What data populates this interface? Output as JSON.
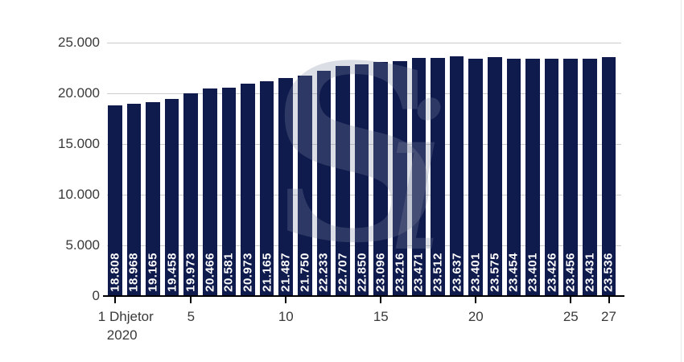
{
  "watermark": {
    "s": "S",
    "i": "i"
  },
  "chart_data": {
    "type": "bar",
    "title": "",
    "categories": [
      "1",
      "2",
      "3",
      "4",
      "5",
      "6",
      "7",
      "8",
      "9",
      "10",
      "11",
      "12",
      "13",
      "14",
      "15",
      "16",
      "17",
      "18",
      "19",
      "20",
      "21",
      "22",
      "23",
      "24",
      "25",
      "26",
      "27"
    ],
    "values": [
      18808,
      18968,
      19165,
      19458,
      19973,
      20466,
      20581,
      20973,
      21165,
      21487,
      21750,
      22233,
      22707,
      22850,
      23096,
      23216,
      23471,
      23512,
      23637,
      23401,
      23575,
      23454,
      23401,
      23426,
      23456,
      23431,
      23536
    ],
    "value_labels": [
      "18.808",
      "18.968",
      "19.165",
      "19.458",
      "19.973",
      "20.466",
      "20.581",
      "20.973",
      "21.165",
      "21.487",
      "21.750",
      "22.233",
      "22.707",
      "22.850",
      "23.096",
      "23.216",
      "23.471",
      "23.512",
      "23.637",
      "23.401",
      "23.575",
      "23.454",
      "23.401",
      "23.426",
      "23.456",
      "23.431",
      "23.536"
    ],
    "xlabel": "",
    "ylabel": "",
    "ylim": [
      0,
      25000
    ],
    "grid": true,
    "legend": null,
    "y_axis": {
      "ticks": [
        {
          "value": 25000,
          "label": "25.000"
        },
        {
          "value": 20000,
          "label": "20.000"
        },
        {
          "value": 15000,
          "label": "15.000"
        },
        {
          "value": 10000,
          "label": "10.000"
        },
        {
          "value": 5000,
          "label": "5.000"
        },
        {
          "value": 0,
          "label": "0"
        }
      ]
    },
    "x_axis": {
      "ticks": [
        {
          "day": 1,
          "label": "1 Dhjetor",
          "label2": "2020"
        },
        {
          "day": 5,
          "label": "5"
        },
        {
          "day": 10,
          "label": "10"
        },
        {
          "day": 15,
          "label": "15"
        },
        {
          "day": 20,
          "label": "20"
        },
        {
          "day": 25,
          "label": "25"
        },
        {
          "day": 27,
          "label": "27"
        }
      ]
    },
    "colors": {
      "bar": "#0f1a4d",
      "grid": "#cccccc",
      "axis": "#000000",
      "bar_label": "#ffffff",
      "tick_text": "#3a3a3a",
      "watermark": "rgba(128,136,160,0.28)"
    }
  }
}
